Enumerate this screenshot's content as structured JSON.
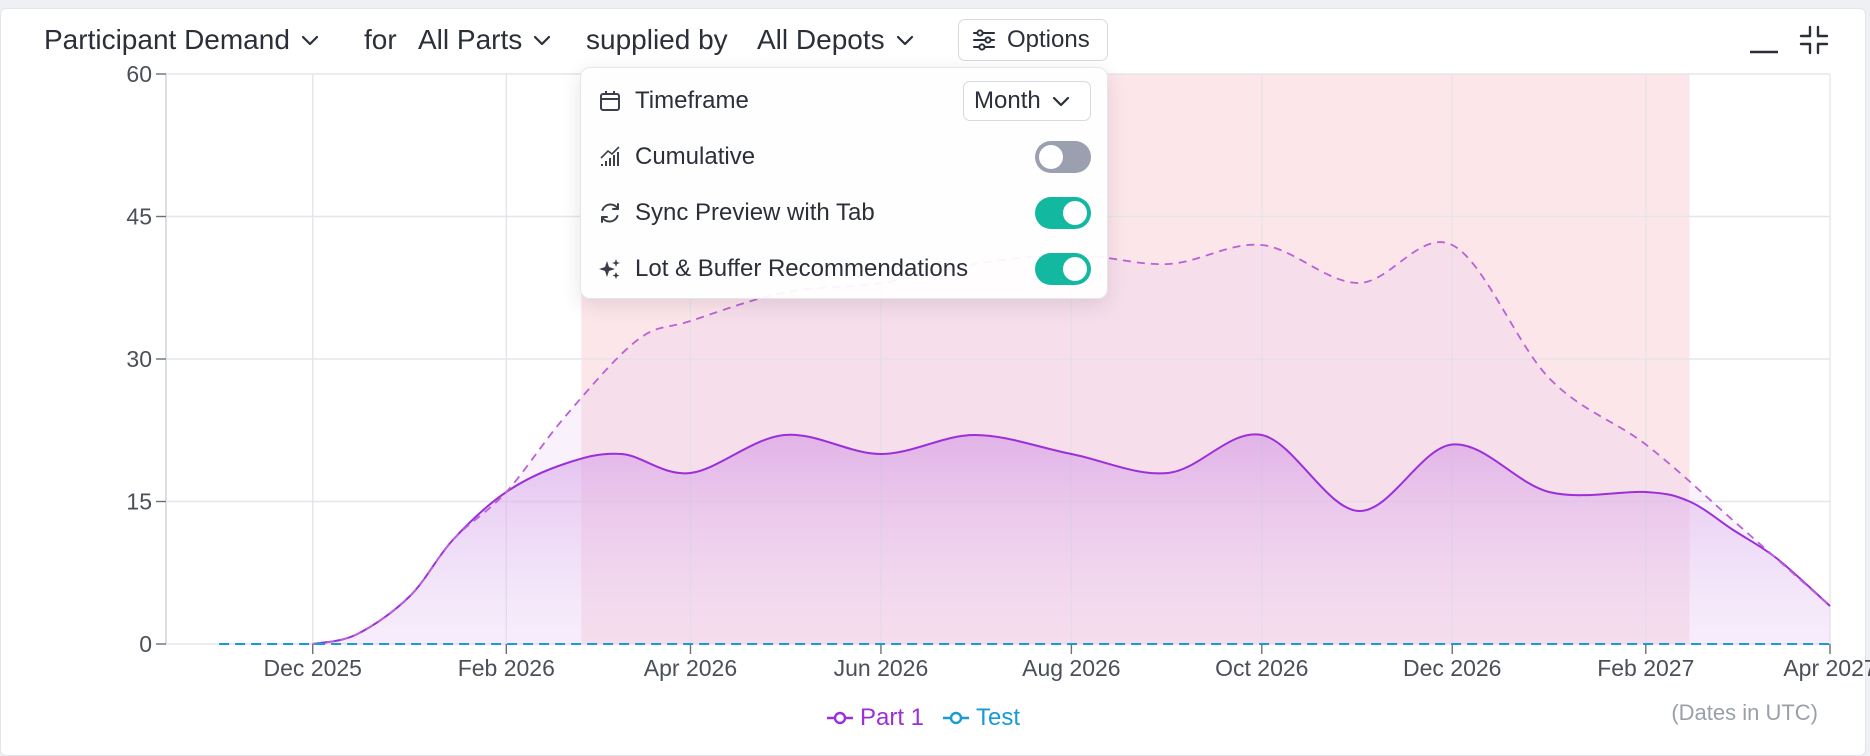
{
  "header": {
    "metric": "Participant Demand",
    "for_word": "for",
    "parts": "All Parts",
    "supplied_word": "supplied by",
    "depots": "All Depots",
    "options_label": "Options"
  },
  "options_menu": {
    "timeframe_label": "Timeframe",
    "timeframe_value": "Month",
    "cumulative_label": "Cumulative",
    "cumulative_on": false,
    "sync_label": "Sync Preview with Tab",
    "sync_on": true,
    "recs_label": "Lot & Buffer Recommendations",
    "recs_on": true
  },
  "note": "(Dates in UTC)",
  "colors": {
    "part1": "#9b30d9",
    "test": "#1a9ad6",
    "band": "#fde6ea",
    "toggle_on": "#13b8a0",
    "toggle_off": "#9aa0b0"
  },
  "chart_data": {
    "type": "area",
    "x_start": "2025-10-15",
    "x_end": "2027-04-01",
    "ylim": [
      0,
      60
    ],
    "yticks": [
      0,
      15,
      30,
      45,
      60
    ],
    "xticks": [
      {
        "label": "Dec 2025",
        "date": "2025-12-01"
      },
      {
        "label": "Feb 2026",
        "date": "2026-02-01"
      },
      {
        "label": "Apr 2026",
        "date": "2026-04-01"
      },
      {
        "label": "Jun 2026",
        "date": "2026-06-01"
      },
      {
        "label": "Aug 2026",
        "date": "2026-08-01"
      },
      {
        "label": "Oct 2026",
        "date": "2026-10-01"
      },
      {
        "label": "Dec 2026",
        "date": "2026-12-01"
      },
      {
        "label": "Feb 2027",
        "date": "2027-02-01"
      },
      {
        "label": "Apr 2027",
        "date": "2027-04-01"
      }
    ],
    "highlight_band": {
      "from": "2026-02-25",
      "to": "2027-02-15"
    },
    "series": [
      {
        "name": "Part 1",
        "style": "solid",
        "points": [
          [
            "2025-12-01",
            0
          ],
          [
            "2025-12-15",
            1
          ],
          [
            "2026-01-01",
            5
          ],
          [
            "2026-01-15",
            11
          ],
          [
            "2026-02-01",
            16
          ],
          [
            "2026-02-20",
            19
          ],
          [
            "2026-03-10",
            20
          ],
          [
            "2026-04-01",
            18
          ],
          [
            "2026-05-01",
            22
          ],
          [
            "2026-06-01",
            20
          ],
          [
            "2026-07-01",
            22
          ],
          [
            "2026-08-01",
            20
          ],
          [
            "2026-09-01",
            18
          ],
          [
            "2026-10-01",
            22
          ],
          [
            "2026-11-01",
            14
          ],
          [
            "2026-12-01",
            21
          ],
          [
            "2027-01-01",
            16
          ],
          [
            "2027-02-01",
            16
          ],
          [
            "2027-02-15",
            15
          ],
          [
            "2027-03-01",
            12
          ],
          [
            "2027-03-15",
            9
          ],
          [
            "2027-04-01",
            4
          ]
        ]
      },
      {
        "name": "",
        "style": "dashed",
        "points": [
          [
            "2025-12-01",
            0
          ],
          [
            "2025-12-15",
            1
          ],
          [
            "2026-01-01",
            5
          ],
          [
            "2026-01-15",
            11
          ],
          [
            "2026-02-01",
            16
          ],
          [
            "2026-02-20",
            24
          ],
          [
            "2026-03-15",
            32
          ],
          [
            "2026-04-01",
            34
          ],
          [
            "2026-05-01",
            37
          ],
          [
            "2026-06-01",
            38
          ],
          [
            "2026-07-01",
            40
          ],
          [
            "2026-08-01",
            41
          ],
          [
            "2026-09-01",
            40
          ],
          [
            "2026-10-01",
            42
          ],
          [
            "2026-11-01",
            38
          ],
          [
            "2026-12-01",
            42
          ],
          [
            "2027-01-01",
            28
          ],
          [
            "2027-02-01",
            21
          ],
          [
            "2027-03-01",
            13
          ],
          [
            "2027-04-01",
            4
          ]
        ]
      },
      {
        "name": "Test",
        "style": "dashed",
        "points": [
          [
            "2025-11-01",
            0
          ],
          [
            "2027-04-01",
            0
          ]
        ]
      }
    ]
  }
}
